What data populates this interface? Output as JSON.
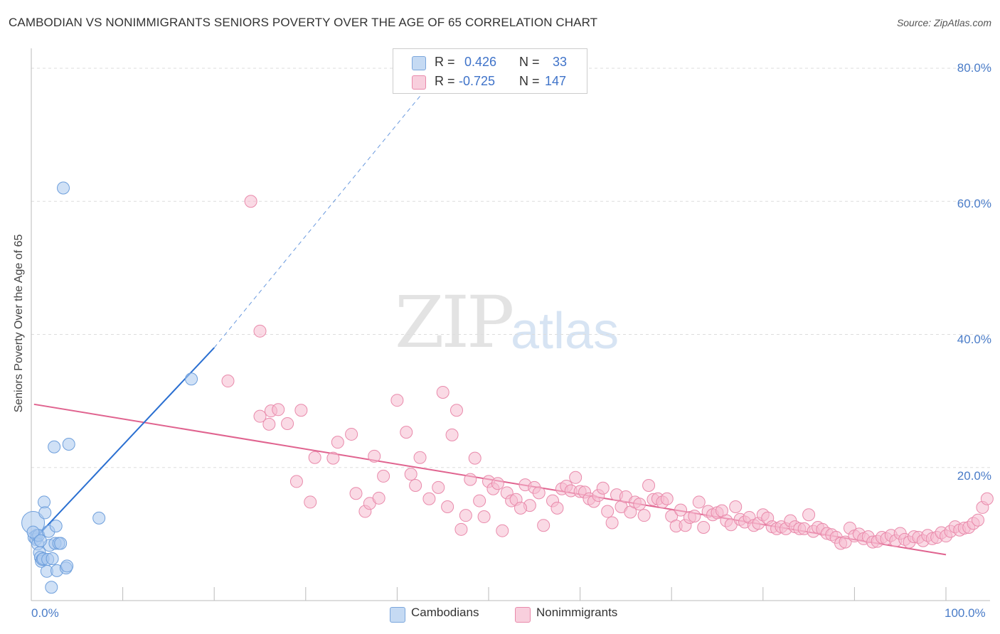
{
  "title": "CAMBODIAN VS NONIMMIGRANTS SENIORS POVERTY OVER THE AGE OF 65 CORRELATION CHART",
  "source": "Source: ZipAtlas.com",
  "watermark": {
    "zip": "ZIP",
    "atlas": "atlas"
  },
  "legend_top": {
    "rows": [
      {
        "r_label": "R =",
        "r_value": "0.426",
        "n_label": "N =",
        "n_value": "33"
      },
      {
        "r_label": "R =",
        "r_value": "-0.725",
        "n_label": "N =",
        "n_value": "147"
      }
    ]
  },
  "legend_bottom": {
    "cambodians": "Cambodians",
    "nonimmigrants": "Nonimmigrants"
  },
  "colors": {
    "cambodians_fill": "#a9c8ee",
    "cambodians_stroke": "#6e9fdc",
    "cambodians_line": "#2a6fd1",
    "nonimmigrants_fill": "#f5bcd0",
    "nonimmigrants_stroke": "#e98aab",
    "nonimmigrants_line": "#e0638f",
    "grid": "#dddddd",
    "axis_text": "#4a7cc8"
  },
  "chart_data": {
    "type": "scatter",
    "title": "CAMBODIAN VS NONIMMIGRANTS SENIORS POVERTY OVER THE AGE OF 65 CORRELATION CHART",
    "xlabel": "",
    "ylabel": "Seniors Poverty Over the Age of 65",
    "xlim": [
      0,
      100
    ],
    "ylim": [
      0,
      80
    ],
    "x_ticks": [
      "0.0%",
      "100.0%"
    ],
    "y_ticks": [
      "20.0%",
      "40.0%",
      "60.0%",
      "80.0%"
    ],
    "grid": true,
    "legend_position": "top-center",
    "series": [
      {
        "name": "Cambodians",
        "points": [
          [
            0.2,
            11.7
          ],
          [
            0.3,
            9.5
          ],
          [
            0.5,
            9.2
          ],
          [
            0.6,
            9.8
          ],
          [
            0.7,
            8.5
          ],
          [
            0.8,
            9.8
          ],
          [
            0.9,
            7.2
          ],
          [
            1.0,
            6.5
          ],
          [
            1.1,
            5.9
          ],
          [
            1.2,
            6.2
          ],
          [
            1.3,
            6.3
          ],
          [
            1.4,
            14.8
          ],
          [
            1.5,
            13.2
          ],
          [
            1.7,
            4.4
          ],
          [
            1.8,
            6.2
          ],
          [
            1.9,
            10.4
          ],
          [
            2.0,
            8.3
          ],
          [
            2.2,
            2.0
          ],
          [
            2.3,
            6.3
          ],
          [
            2.5,
            23.1
          ],
          [
            2.6,
            8.6
          ],
          [
            2.7,
            11.2
          ],
          [
            2.8,
            4.5
          ],
          [
            3.0,
            8.6
          ],
          [
            3.2,
            8.6
          ],
          [
            3.5,
            62.0
          ],
          [
            3.8,
            4.9
          ],
          [
            3.9,
            5.2
          ],
          [
            4.1,
            23.5
          ],
          [
            7.4,
            12.4
          ],
          [
            17.5,
            33.3
          ],
          [
            0.2,
            10.3
          ],
          [
            1.0,
            9.0
          ]
        ],
        "trend": {
          "x": [
            0.2,
            20.0
          ],
          "y": [
            9.0,
            38.0
          ],
          "dashed_to": [
            45.0,
            80.0
          ]
        }
      },
      {
        "name": "Nonimmigrants",
        "points": [
          [
            21.5,
            33.0
          ],
          [
            24.0,
            60.0
          ],
          [
            25.0,
            40.5
          ],
          [
            25.0,
            27.7
          ],
          [
            26.0,
            26.5
          ],
          [
            26.2,
            28.5
          ],
          [
            27.0,
            28.7
          ],
          [
            28.0,
            26.6
          ],
          [
            29.0,
            17.9
          ],
          [
            29.5,
            28.6
          ],
          [
            30.5,
            14.8
          ],
          [
            31.0,
            21.5
          ],
          [
            33.0,
            21.4
          ],
          [
            33.5,
            23.8
          ],
          [
            35.0,
            25.0
          ],
          [
            35.5,
            16.1
          ],
          [
            36.5,
            13.4
          ],
          [
            37.0,
            14.6
          ],
          [
            37.5,
            21.7
          ],
          [
            38.0,
            15.4
          ],
          [
            38.5,
            18.7
          ],
          [
            40.0,
            30.1
          ],
          [
            41.0,
            25.3
          ],
          [
            41.5,
            19.0
          ],
          [
            42.0,
            17.3
          ],
          [
            42.5,
            21.5
          ],
          [
            43.5,
            15.3
          ],
          [
            44.5,
            17.0
          ],
          [
            45.0,
            31.3
          ],
          [
            45.5,
            14.1
          ],
          [
            46.0,
            24.9
          ],
          [
            46.5,
            28.6
          ],
          [
            47.5,
            12.8
          ],
          [
            48.0,
            18.2
          ],
          [
            48.5,
            21.4
          ],
          [
            49.0,
            15.0
          ],
          [
            49.5,
            12.6
          ],
          [
            50.0,
            17.9
          ],
          [
            50.5,
            16.8
          ],
          [
            51.0,
            17.6
          ],
          [
            51.5,
            10.5
          ],
          [
            52.0,
            16.2
          ],
          [
            52.5,
            15.0
          ],
          [
            53.0,
            15.2
          ],
          [
            54.0,
            17.4
          ],
          [
            54.5,
            14.3
          ],
          [
            55.0,
            17.0
          ],
          [
            56.0,
            11.3
          ],
          [
            57.0,
            15.0
          ],
          [
            57.5,
            13.9
          ],
          [
            58.0,
            16.8
          ],
          [
            58.5,
            17.2
          ],
          [
            59.0,
            16.5
          ],
          [
            59.5,
            18.5
          ],
          [
            60.0,
            16.4
          ],
          [
            60.5,
            16.3
          ],
          [
            61.0,
            15.3
          ],
          [
            61.5,
            14.9
          ],
          [
            62.0,
            15.8
          ],
          [
            63.0,
            13.4
          ],
          [
            63.5,
            11.7
          ],
          [
            64.0,
            15.9
          ],
          [
            64.5,
            14.1
          ],
          [
            65.0,
            15.6
          ],
          [
            65.5,
            13.3
          ],
          [
            66.0,
            14.8
          ],
          [
            66.5,
            14.5
          ],
          [
            67.0,
            12.8
          ],
          [
            67.5,
            17.3
          ],
          [
            68.0,
            15.2
          ],
          [
            68.5,
            15.3
          ],
          [
            69.0,
            14.8
          ],
          [
            69.5,
            15.3
          ],
          [
            70.0,
            12.7
          ],
          [
            70.5,
            11.2
          ],
          [
            71.0,
            13.6
          ],
          [
            71.5,
            11.3
          ],
          [
            72.0,
            12.5
          ],
          [
            72.5,
            12.7
          ],
          [
            73.0,
            14.8
          ],
          [
            73.5,
            11.0
          ],
          [
            74.0,
            13.4
          ],
          [
            74.5,
            12.9
          ],
          [
            75.0,
            13.2
          ],
          [
            75.5,
            13.5
          ],
          [
            76.0,
            12.0
          ],
          [
            76.5,
            11.4
          ],
          [
            77.0,
            14.1
          ],
          [
            77.5,
            12.2
          ],
          [
            78.0,
            11.8
          ],
          [
            78.5,
            12.5
          ],
          [
            79.0,
            11.3
          ],
          [
            79.5,
            11.6
          ],
          [
            80.0,
            12.9
          ],
          [
            80.5,
            12.4
          ],
          [
            81.0,
            11.1
          ],
          [
            81.5,
            10.8
          ],
          [
            82.0,
            11.1
          ],
          [
            82.5,
            10.8
          ],
          [
            83.0,
            12.0
          ],
          [
            83.5,
            11.1
          ],
          [
            84.0,
            10.8
          ],
          [
            84.5,
            10.8
          ],
          [
            85.0,
            12.9
          ],
          [
            85.5,
            10.4
          ],
          [
            86.0,
            11.0
          ],
          [
            86.5,
            10.7
          ],
          [
            87.0,
            10.1
          ],
          [
            87.5,
            9.9
          ],
          [
            88.0,
            9.5
          ],
          [
            88.5,
            8.6
          ],
          [
            89.0,
            8.8
          ],
          [
            89.5,
            10.9
          ],
          [
            90.0,
            9.7
          ],
          [
            90.5,
            10.0
          ],
          [
            91.0,
            9.3
          ],
          [
            91.5,
            9.6
          ],
          [
            92.0,
            8.8
          ],
          [
            92.5,
            8.9
          ],
          [
            93.0,
            9.5
          ],
          [
            93.5,
            9.3
          ],
          [
            94.0,
            9.8
          ],
          [
            94.5,
            9.0
          ],
          [
            95.0,
            10.1
          ],
          [
            95.5,
            9.2
          ],
          [
            96.0,
            8.8
          ],
          [
            96.5,
            9.6
          ],
          [
            97.0,
            9.5
          ],
          [
            97.5,
            9.0
          ],
          [
            98.0,
            9.8
          ],
          [
            98.5,
            9.3
          ],
          [
            99.0,
            9.5
          ],
          [
            99.5,
            10.2
          ],
          [
            100.0,
            9.7
          ],
          [
            100.5,
            10.4
          ],
          [
            101.0,
            11.1
          ],
          [
            101.5,
            10.6
          ],
          [
            102.0,
            10.9
          ],
          [
            102.5,
            11.0
          ],
          [
            103.0,
            11.6
          ],
          [
            103.5,
            12.1
          ],
          [
            104.0,
            14.0
          ],
          [
            104.5,
            15.3
          ],
          [
            55.5,
            16.2
          ],
          [
            47.0,
            10.7
          ],
          [
            53.5,
            13.9
          ],
          [
            62.5,
            16.9
          ]
        ],
        "trend": {
          "x": [
            0.3,
            100.0
          ],
          "y": [
            29.5,
            6.9
          ]
        }
      }
    ]
  }
}
